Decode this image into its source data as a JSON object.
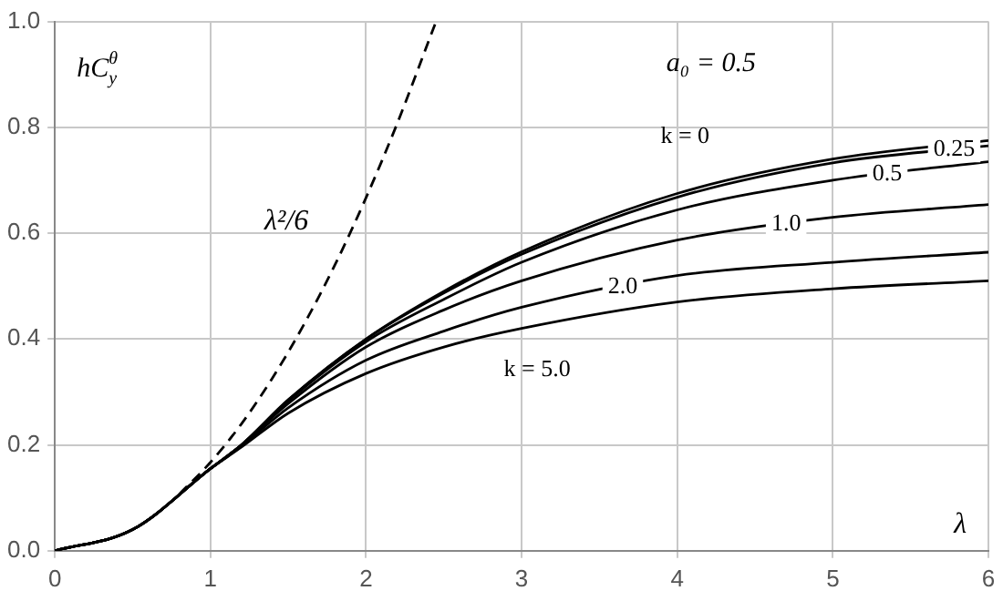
{
  "chart_data": {
    "type": "line",
    "ylabel": "hC$_{y}$$^{θ}$",
    "xlabel": "λ",
    "annotations": [
      "a₀ = 0.5"
    ],
    "xlim": [
      0,
      6
    ],
    "ylim": [
      0,
      1
    ],
    "xticks": [
      0,
      1,
      2,
      3,
      4,
      5,
      6
    ],
    "yticks": [
      {
        "value": 0,
        "label": "0.0"
      },
      {
        "value": 0.2,
        "label": "0.2"
      },
      {
        "value": 0.4,
        "label": "0.4"
      },
      {
        "value": 0.6,
        "label": "0.6"
      },
      {
        "value": 0.8,
        "label": "0.8"
      },
      {
        "value": 1,
        "label": "1.0"
      }
    ],
    "grid": true,
    "legend": false,
    "marker": "none",
    "series": [
      {
        "name": "λ²/6",
        "color": "#000000",
        "line_style": "dashed",
        "x": [
          0.8,
          1,
          1.2,
          1.4,
          1.6,
          1.8,
          2,
          2.2,
          2.45
        ],
        "values": [
          0.107,
          0.167,
          0.24,
          0.327,
          0.427,
          0.54,
          0.667,
          0.807,
          1.0
        ]
      },
      {
        "name": "k = 0",
        "color": "#000000",
        "x": [
          0,
          0.5,
          1,
          1.2,
          1.5,
          2,
          2.5,
          3,
          4,
          5,
          6
        ],
        "values": [
          0,
          0.04,
          0.155,
          0.2,
          0.285,
          0.4,
          0.49,
          0.565,
          0.675,
          0.74,
          0.775
        ]
      },
      {
        "name": "0.25",
        "color": "#000000",
        "x": [
          0,
          0.5,
          1,
          1.2,
          1.5,
          2,
          2.5,
          3,
          4,
          5,
          6
        ],
        "values": [
          0,
          0.04,
          0.155,
          0.2,
          0.285,
          0.4,
          0.487,
          0.56,
          0.668,
          0.733,
          0.765
        ]
      },
      {
        "name": "0.5",
        "color": "#000000",
        "x": [
          0,
          0.5,
          1,
          1.2,
          1.5,
          2,
          2.5,
          3,
          4,
          5,
          6
        ],
        "values": [
          0,
          0.04,
          0.155,
          0.2,
          0.283,
          0.395,
          0.475,
          0.545,
          0.644,
          0.7,
          0.735
        ]
      },
      {
        "name": "1.0",
        "color": "#000000",
        "x": [
          0,
          0.5,
          1,
          1.2,
          1.5,
          2,
          2.5,
          3,
          4,
          5,
          6
        ],
        "values": [
          0,
          0.04,
          0.155,
          0.2,
          0.278,
          0.385,
          0.455,
          0.51,
          0.587,
          0.63,
          0.654
        ]
      },
      {
        "name": "2.0",
        "color": "#000000",
        "x": [
          0,
          0.5,
          1,
          1.2,
          1.5,
          2,
          2.5,
          3,
          4,
          5,
          6
        ],
        "values": [
          0,
          0.04,
          0.155,
          0.198,
          0.27,
          0.36,
          0.415,
          0.46,
          0.52,
          0.545,
          0.564
        ]
      },
      {
        "name": "k = 5.0",
        "color": "#000000",
        "x": [
          0,
          0.5,
          1,
          1.2,
          1.5,
          2,
          2.5,
          3,
          4,
          5,
          6
        ],
        "values": [
          0,
          0.04,
          0.155,
          0.196,
          0.26,
          0.335,
          0.385,
          0.42,
          0.47,
          0.495,
          0.51
        ]
      }
    ]
  }
}
